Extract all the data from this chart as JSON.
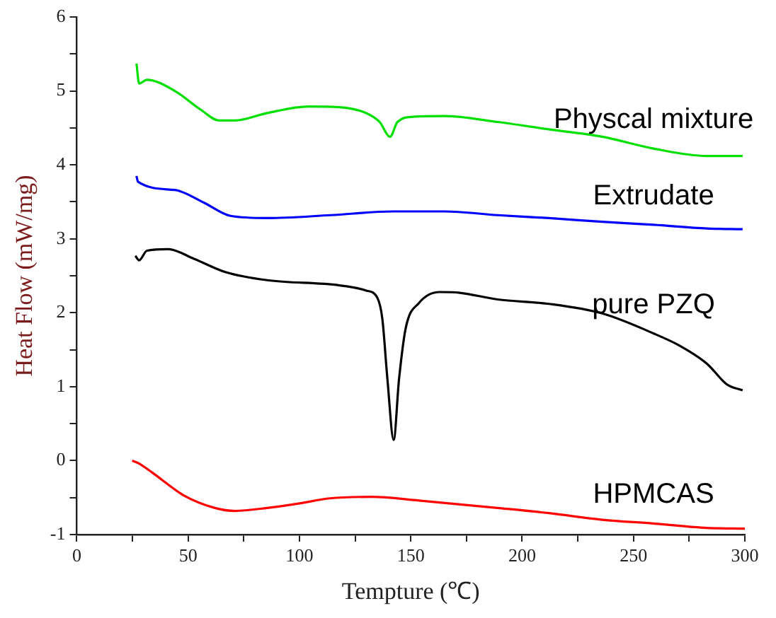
{
  "chart_data": {
    "type": "line",
    "xlabel": "Tempture (℃)",
    "ylabel": "Heat Flow (mW/mg)",
    "xlim": [
      0,
      300
    ],
    "ylim": [
      -1,
      6
    ],
    "xticks": [
      0,
      {
        "value": 25,
        "label": null
      },
      50,
      {
        "value": 75,
        "label": null
      },
      100,
      {
        "value": 125,
        "label": null
      },
      150,
      {
        "value": 175,
        "label": null
      },
      200,
      {
        "value": 225,
        "label": null
      },
      250,
      {
        "value": 275,
        "label": null
      },
      300
    ],
    "yticks": [
      -1,
      {
        "value": -0.5,
        "label": null
      },
      0,
      {
        "value": 0.5,
        "label": null
      },
      1,
      {
        "value": 1.5,
        "label": null
      },
      2,
      {
        "value": 2.5,
        "label": null
      },
      3,
      {
        "value": 3.5,
        "label": null
      },
      4,
      {
        "value": 4.5,
        "label": null
      },
      5,
      {
        "value": 5.5,
        "label": null
      },
      6
    ],
    "grid": false,
    "legend": false,
    "marker": "none",
    "line_style": "solid",
    "series": [
      {
        "name": "Physcal mixture",
        "color": "#00e000",
        "x": [
          26.8,
          28,
          31.5,
          44,
          55.5,
          64,
          71,
          85.5,
          104,
          118,
          130,
          136,
          140.7,
          144,
          151,
          165,
          189,
          212,
          236,
          259,
          283,
          299
        ],
        "values": [
          5.37,
          5.1,
          5.15,
          5.0,
          4.75,
          4.6,
          4.6,
          4.7,
          4.79,
          4.78,
          4.7,
          4.58,
          4.38,
          4.58,
          4.65,
          4.66,
          4.58,
          4.48,
          4.38,
          4.22,
          4.12,
          4.12
        ]
      },
      {
        "name": "Extrudate",
        "color": "#0000ff",
        "x": [
          26.8,
          27.5,
          44,
          57,
          69,
          85.5,
          114,
          142,
          165,
          189,
          212,
          236,
          259,
          283,
          299
        ],
        "values": [
          3.85,
          3.77,
          3.66,
          3.49,
          3.31,
          3.28,
          3.32,
          3.37,
          3.37,
          3.32,
          3.28,
          3.23,
          3.19,
          3.14,
          3.13
        ]
      },
      {
        "name": "pure PZQ",
        "color": "#000000",
        "x": [
          26.3,
          28,
          31.5,
          40.9,
          52.6,
          66.7,
          85.5,
          118,
          130,
          135,
          137.2,
          139.5,
          142.3,
          144.7,
          147.7,
          153.6,
          163,
          172,
          189,
          212,
          236,
          259,
          271,
          283,
          292,
          299
        ],
        "values": [
          2.77,
          2.71,
          2.84,
          2.86,
          2.73,
          2.55,
          2.44,
          2.37,
          2.3,
          2.2,
          1.92,
          1.1,
          0.28,
          1.1,
          1.79,
          2.13,
          2.28,
          2.27,
          2.18,
          2.12,
          1.99,
          1.72,
          1.55,
          1.31,
          1.03,
          0.95
        ]
      },
      {
        "name": "HPMCAS",
        "color": "#ff0000",
        "x": [
          24.9,
          28,
          33.8,
          48,
          62,
          71,
          85.5,
          99.6,
          113.7,
          132.5,
          153.6,
          189,
          212,
          236,
          259,
          283,
          300
        ],
        "values": [
          0.0,
          -0.04,
          -0.16,
          -0.47,
          -0.64,
          -0.68,
          -0.64,
          -0.58,
          -0.51,
          -0.49,
          -0.54,
          -0.64,
          -0.71,
          -0.8,
          -0.85,
          -0.91,
          -0.92
        ]
      }
    ]
  }
}
